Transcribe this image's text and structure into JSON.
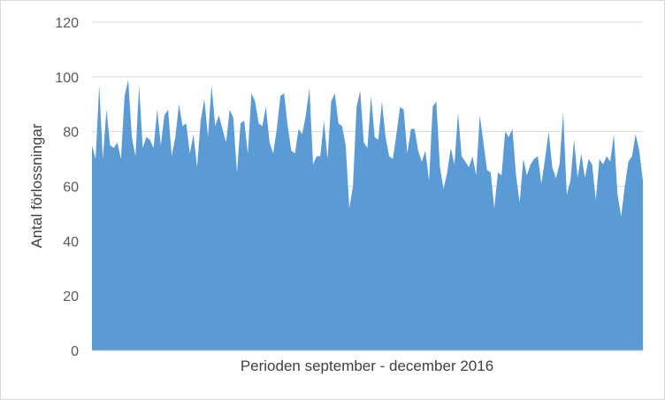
{
  "chart_data": {
    "type": "area",
    "xlabel": "Perioden september - december 2016",
    "ylabel": "Antal förlossningar",
    "ylim": [
      0,
      120
    ],
    "yticks": [
      0,
      20,
      40,
      60,
      80,
      100,
      120
    ],
    "grid": true,
    "legend": "none",
    "colors": {
      "fill": "#5b9bd5",
      "grid": "#d9d9d9",
      "axis": "#bfbfbf"
    },
    "values": [
      75,
      70,
      97,
      70,
      88,
      75,
      74,
      76,
      70,
      93,
      99,
      78,
      71,
      97,
      74,
      78,
      77,
      74,
      88,
      75,
      86,
      88,
      71,
      78,
      90,
      82,
      83,
      72,
      79,
      67,
      84,
      92,
      78,
      97,
      82,
      86,
      81,
      76,
      88,
      85,
      65,
      83,
      84,
      72,
      94,
      91,
      83,
      82,
      89,
      76,
      72,
      81,
      93,
      94,
      82,
      73,
      72,
      81,
      79,
      86,
      96,
      68,
      71,
      71,
      84,
      70,
      91,
      94,
      83,
      82,
      75,
      52,
      60,
      89,
      95,
      76,
      74,
      93,
      78,
      77,
      91,
      78,
      71,
      70,
      79,
      89,
      88,
      72,
      81,
      81,
      73,
      69,
      73,
      62,
      89,
      91,
      67,
      59,
      65,
      74,
      68,
      87,
      71,
      69,
      67,
      71,
      64,
      86,
      76,
      66,
      65,
      52,
      65,
      64,
      80,
      78,
      81,
      64,
      54,
      70,
      64,
      68,
      70,
      71,
      61,
      70,
      80,
      67,
      63,
      68,
      87,
      57,
      62,
      77,
      63,
      72,
      63,
      70,
      68,
      55,
      70,
      68,
      71,
      69,
      79,
      57,
      49,
      60,
      69,
      71,
      79,
      73,
      62
    ]
  }
}
